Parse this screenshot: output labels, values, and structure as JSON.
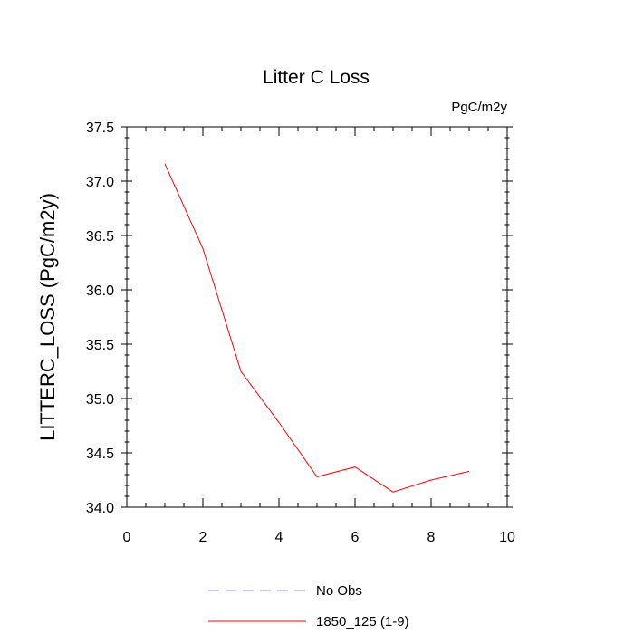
{
  "chart_data": {
    "type": "line",
    "title": "Litter C Loss",
    "units": "PgC/m2y",
    "xlabel": "",
    "ylabel": "LITTERC_LOSS  (PgC/m2y)",
    "xlim": [
      0,
      10
    ],
    "ylim": [
      34.0,
      37.5
    ],
    "x_ticks": [
      0,
      2,
      4,
      6,
      8,
      10
    ],
    "x_tick_labels": [
      "0",
      "2",
      "4",
      "6",
      "8",
      "10"
    ],
    "y_ticks": [
      34.0,
      34.5,
      35.0,
      35.5,
      36.0,
      36.5,
      37.0,
      37.5
    ],
    "y_tick_labels": [
      "34.0",
      "34.5",
      "35.0",
      "35.5",
      "36.0",
      "36.5",
      "37.0",
      "37.5"
    ],
    "grid": false,
    "legend_position": "bottom",
    "legend": [
      {
        "label": "No Obs",
        "color": "#8c8cff",
        "dashed": true
      },
      {
        "label": "1850_125 (1-9)",
        "color": "#ff0000",
        "dashed": false
      }
    ],
    "series": [
      {
        "name": "1850_125 (1-9)",
        "color": "#ff0000",
        "x": [
          1,
          2,
          3,
          4,
          5,
          6,
          7,
          8,
          9
        ],
        "values": [
          37.16,
          36.38,
          35.25,
          34.78,
          34.28,
          34.37,
          34.14,
          34.25,
          34.33
        ]
      }
    ]
  }
}
